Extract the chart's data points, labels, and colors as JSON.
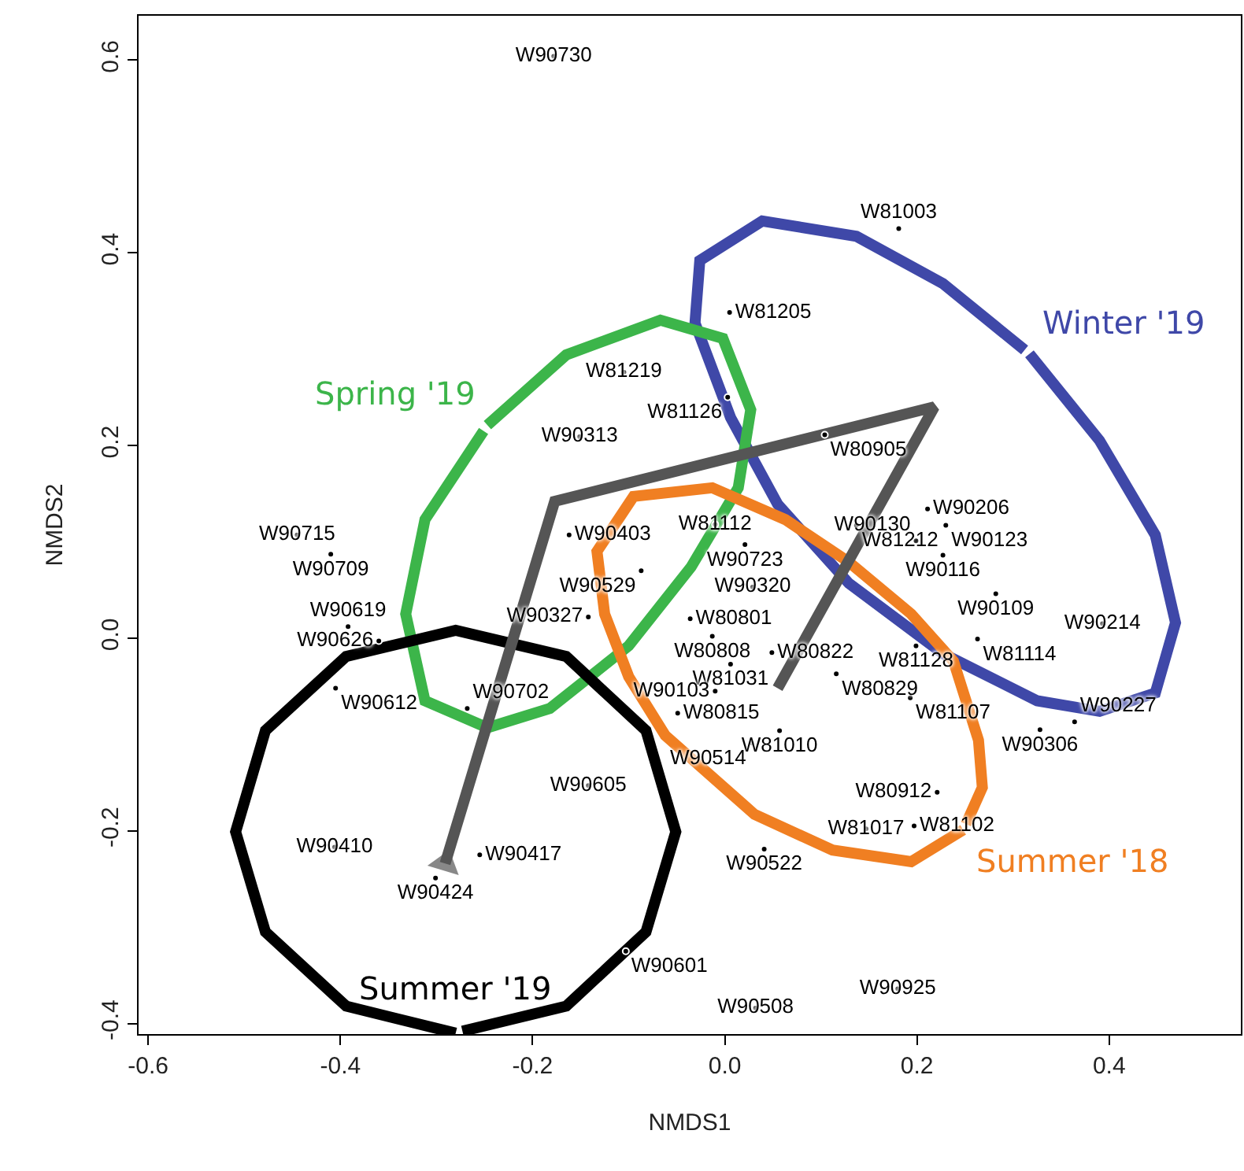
{
  "chart_data": {
    "type": "scatter",
    "xlabel": "NMDS1",
    "ylabel": "NMDS2",
    "xlim": [
      -0.61,
      0.537
    ],
    "ylim": [
      -0.411,
      0.646
    ],
    "xticks": [
      {
        "value": -0.6,
        "label": "-0.6"
      },
      {
        "value": -0.4,
        "label": "-0.4"
      },
      {
        "value": -0.2,
        "label": "-0.2"
      },
      {
        "value": 0,
        "label": "0.0"
      },
      {
        "value": 0.2,
        "label": "0.2"
      },
      {
        "value": 0.4,
        "label": "0.4"
      }
    ],
    "yticks": [
      {
        "value": -0.4,
        "label": "-0.4"
      },
      {
        "value": -0.2,
        "label": "-0.2"
      },
      {
        "value": 0,
        "label": "0.0"
      },
      {
        "value": 0.2,
        "label": "0.2"
      },
      {
        "value": 0.4,
        "label": "0.4"
      },
      {
        "value": 0.6,
        "label": "0.6"
      }
    ],
    "legend": false,
    "series": [
      {
        "type": "line",
        "marker": "none",
        "name": "Winter '19",
        "color": "#3f48a8",
        "x": [
          0.317,
          0.39,
          0.448,
          0.469,
          0.448,
          0.39,
          0.325,
          0.227,
          0.129,
          0.055,
          0.006,
          -0.031,
          -0.026,
          0.039,
          0.137,
          0.227,
          0.312
        ],
        "values": [
          0.295,
          0.205,
          0.107,
          0.016,
          -0.057,
          -0.076,
          -0.065,
          -0.016,
          0.057,
          0.139,
          0.229,
          0.327,
          0.392,
          0.433,
          0.417,
          0.368,
          0.299
        ]
      },
      {
        "type": "line",
        "marker": "none",
        "name": "Spring '19",
        "color": "#3cb54a",
        "x": [
          -0.247,
          -0.165,
          -0.067,
          -0.002,
          0.027,
          0.014,
          -0.035,
          -0.1,
          -0.182,
          -0.247,
          -0.312,
          -0.332,
          -0.312,
          -0.251
        ],
        "values": [
          0.221,
          0.294,
          0.33,
          0.311,
          0.237,
          0.156,
          0.074,
          -0.008,
          -0.073,
          -0.093,
          -0.065,
          0.025,
          0.123,
          0.215
        ]
      },
      {
        "type": "line",
        "marker": "none",
        "name": "Summer '18",
        "color": "#f07f22",
        "x": [
          0.248,
          0.194,
          0.112,
          0.031,
          -0.062,
          -0.1,
          -0.125,
          -0.133,
          -0.095,
          -0.013,
          0.063,
          0.129,
          0.194,
          0.238,
          0.264,
          0.268,
          0.251
        ],
        "values": [
          -0.199,
          -0.232,
          -0.22,
          -0.183,
          -0.101,
          -0.04,
          0.025,
          0.09,
          0.147,
          0.156,
          0.123,
          0.079,
          0.025,
          -0.024,
          -0.106,
          -0.155,
          -0.193
        ]
      },
      {
        "type": "line",
        "marker": "none",
        "name": "Summer '19",
        "color": "#000000",
        "x": [
          -0.28,
          -0.394,
          -0.478,
          -0.509,
          -0.478,
          -0.394,
          -0.28,
          -0.165,
          -0.082,
          -0.051,
          -0.082,
          -0.165,
          -0.273
        ],
        "values": [
          -0.41,
          -0.382,
          -0.305,
          -0.201,
          -0.096,
          -0.019,
          0.008,
          -0.019,
          -0.096,
          -0.201,
          -0.305,
          -0.382,
          -0.408
        ]
      },
      {
        "type": "line",
        "color": "#555555",
        "x": [
          0.055,
          0.218,
          -0.177,
          -0.291
        ],
        "values": [
          -0.052,
          0.24,
          0.142,
          -0.234
        ]
      },
      {
        "marker": "circle",
        "color": "#000000",
        "x": [
          -0.178,
          0.181,
          0.005,
          -0.105,
          0.003,
          -0.151,
          0.104,
          -0.445,
          -0.41,
          -0.162,
          -0.01,
          0.021,
          0.137,
          0.211,
          0.23,
          0.199,
          0.227,
          -0.087,
          0.029,
          0.282,
          0.393,
          -0.142,
          -0.036,
          -0.013,
          0.049,
          0.006,
          0.116,
          0.199,
          0.263,
          0.193,
          0.328,
          0.364,
          -0.392,
          -0.36,
          -0.405,
          -0.268,
          -0.406,
          -0.255,
          -0.301,
          -0.049,
          -0.01,
          0.057,
          0.028,
          -0.142,
          0.221,
          0.147,
          0.197,
          0.041,
          -0.103,
          0.032,
          0.18
        ],
        "values": [
          0.604,
          0.425,
          0.338,
          0.276,
          0.25,
          0.209,
          0.211,
          0.107,
          0.087,
          0.107,
          0.118,
          0.097,
          0.117,
          0.134,
          0.117,
          0.101,
          0.086,
          0.07,
          0.053,
          0.046,
          0.015,
          0.022,
          0.02,
          0.002,
          -0.015,
          -0.027,
          -0.037,
          -0.008,
          -0.001,
          -0.062,
          -0.095,
          -0.087,
          0.012,
          -0.003,
          -0.052,
          -0.073,
          -0.217,
          -0.225,
          -0.249,
          -0.078,
          -0.055,
          -0.096,
          -0.109,
          -0.153,
          -0.16,
          -0.198,
          -0.195,
          -0.219,
          -0.325,
          -0.384,
          -0.364
        ],
        "value_labels": [
          "W90730",
          "W81003",
          "W81205",
          "W81219",
          "W81126",
          "W90313",
          "W80905",
          "W90715",
          "W90709",
          "W90403",
          "W81112",
          "W90723",
          "W81212",
          "W90206",
          "W90123",
          "W90130",
          "W90116",
          "W90529",
          "W90320",
          "W90109",
          "W90214",
          "W90327",
          "W80801",
          "W80808",
          "W80822",
          "W81031",
          "W80829",
          "W81128",
          "W81114",
          "W81107",
          "W90306",
          "W90227",
          "W90619",
          "W90626",
          "W90612",
          "W90702",
          "W90410",
          "W90417",
          "W90424",
          "W80815",
          "W90103",
          "W81010",
          "W90514",
          "W90605",
          "W80912",
          "W81017",
          "W81102",
          "W90522",
          "W90601",
          "W90508",
          "W90925"
        ]
      }
    ]
  }
}
